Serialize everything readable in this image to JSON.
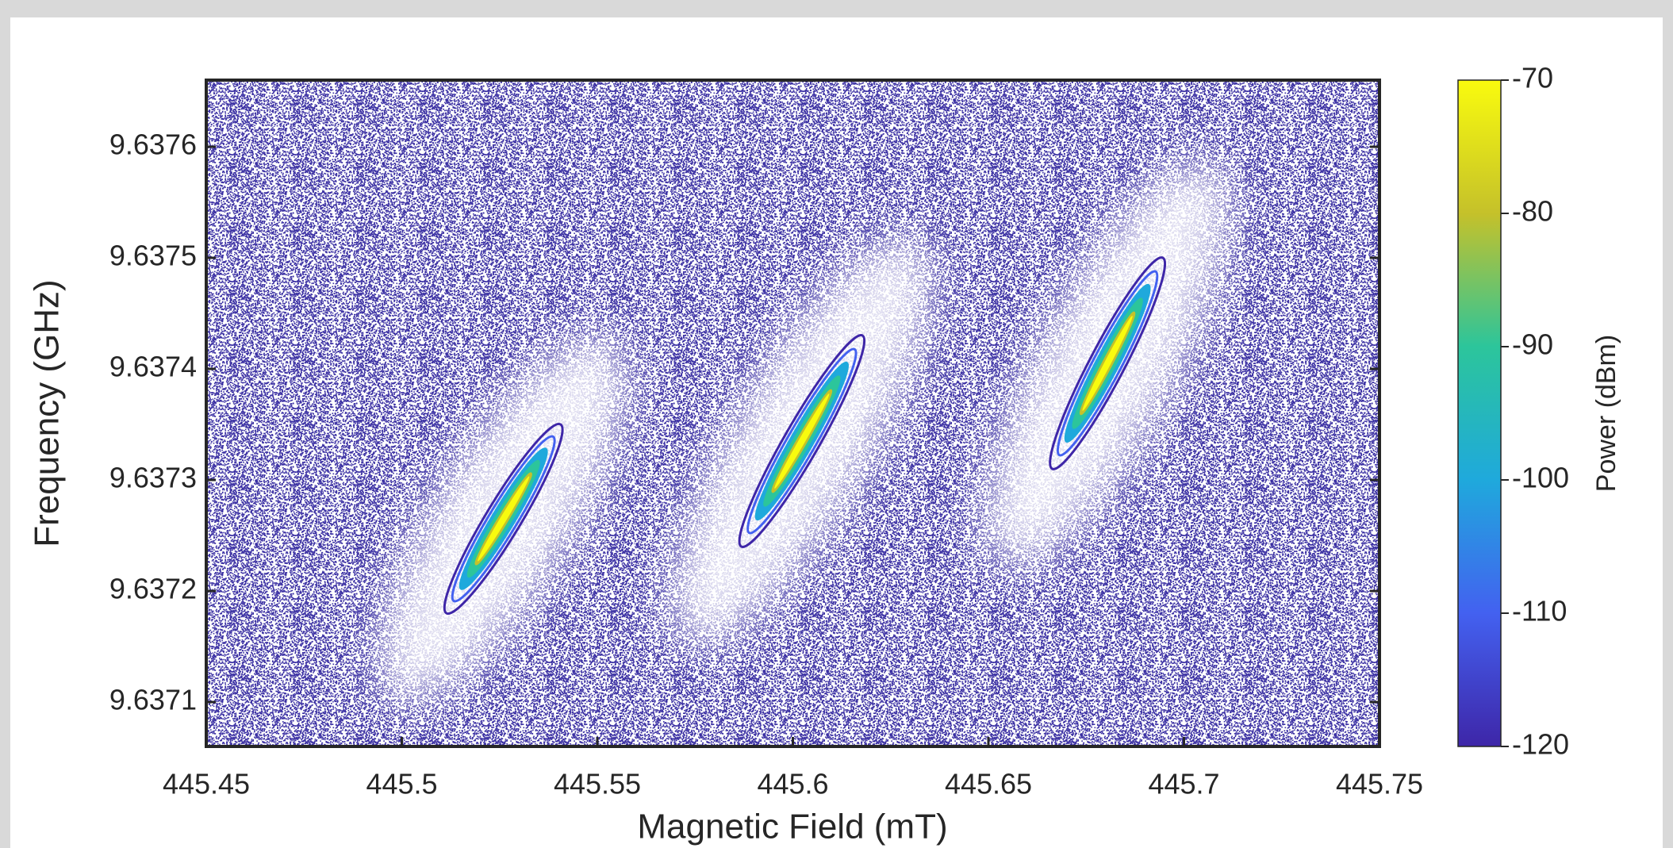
{
  "chart_data": {
    "type": "contour",
    "xlabel": "Magnetic Field (mT)",
    "ylabel": "Frequency (GHz)",
    "colorbar_label": "Power (dBm)",
    "xlim": [
      445.45,
      445.75
    ],
    "xticks": [
      445.45,
      445.5,
      445.55,
      445.6,
      445.65,
      445.7,
      445.75
    ],
    "ylim": [
      9.63706,
      9.63766
    ],
    "yticks": [
      9.6371,
      9.6372,
      9.6373,
      9.6374,
      9.6375,
      9.6376
    ],
    "clim": [
      -120,
      -70
    ],
    "cticks": [
      -120,
      -110,
      -100,
      -90,
      -80,
      -70
    ],
    "colormap": [
      "#3e26a8",
      "#4361f0",
      "#1fa9dc",
      "#2cc59b",
      "#c5c12a",
      "#f9fb0e"
    ],
    "peaks": [
      {
        "x": [
          445.5114,
          445.5406
        ],
        "y": [
          9.63718,
          9.63735
        ]
      },
      {
        "x": [
          445.5868,
          445.6178
        ],
        "y": [
          9.63724,
          9.63743
        ]
      },
      {
        "x": [
          445.6663,
          445.6946
        ],
        "y": [
          9.63731,
          9.6375
        ]
      }
    ]
  }
}
